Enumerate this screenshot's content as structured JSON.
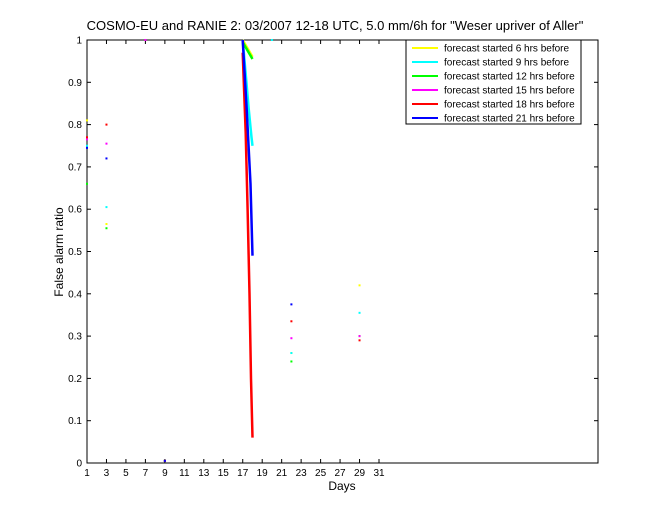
{
  "chart_data": {
    "type": "line",
    "title": "COSMO-EU and RANIE 2: 03/2007 12-18 UTC, 5.0 mm/6h for \"Weser upriver of Aller\"",
    "xlabel": "Days",
    "ylabel": "False alarm ratio",
    "xlim": [
      1,
      53.5
    ],
    "ylim": [
      0,
      1
    ],
    "xticks": [
      1,
      3,
      5,
      7,
      9,
      11,
      13,
      15,
      17,
      19,
      21,
      23,
      25,
      27,
      29,
      31
    ],
    "yticks": [
      0,
      0.1,
      0.2,
      0.3,
      0.4,
      0.5,
      0.6,
      0.7,
      0.8,
      0.9,
      1
    ],
    "grid": false,
    "legend_position": "top-right",
    "series": [
      {
        "name": "forecast started 6 hrs before",
        "color": "#ffff00",
        "points": [
          [
            1,
            0.81
          ],
          [
            3,
            0.565
          ],
          [
            9,
            0.005
          ],
          [
            22,
            0.26
          ],
          [
            29,
            0.42
          ]
        ],
        "lines": [
          [
            [
              17,
              1.0
            ],
            [
              18,
              0.96
            ]
          ]
        ]
      },
      {
        "name": "forecast started 9 hrs before",
        "color": "#00ffff",
        "points": [
          [
            1,
            0.75
          ],
          [
            3,
            0.605
          ],
          [
            9,
            0.005
          ],
          [
            20,
            1.0
          ],
          [
            22,
            0.26
          ],
          [
            29,
            0.355
          ]
        ],
        "lines": [
          [
            [
              17,
              1.0
            ],
            [
              17.3,
              0.92
            ],
            [
              17.6,
              0.84
            ],
            [
              17.9,
              0.77
            ],
            [
              18,
              0.75
            ]
          ]
        ]
      },
      {
        "name": "forecast started 12 hrs before",
        "color": "#00ff00",
        "points": [
          [
            1,
            0.66
          ],
          [
            3,
            0.555
          ],
          [
            9,
            0.005
          ],
          [
            22,
            0.24
          ],
          [
            29,
            0.3
          ]
        ],
        "lines": [
          [
            [
              17,
              0.995
            ],
            [
              17.5,
              0.975
            ],
            [
              18,
              0.955
            ]
          ]
        ]
      },
      {
        "name": "forecast started 15 hrs before",
        "color": "#ff00ff",
        "points": [
          [
            1,
            0.765
          ],
          [
            3,
            0.755
          ],
          [
            7,
            1.0
          ],
          [
            9,
            0.005
          ],
          [
            22,
            0.295
          ],
          [
            29,
            0.3
          ]
        ],
        "lines": []
      },
      {
        "name": "forecast started 18 hrs before",
        "color": "#ff0000",
        "points": [
          [
            1,
            0.77
          ],
          [
            3,
            0.8
          ],
          [
            9,
            0.005
          ],
          [
            22,
            0.335
          ],
          [
            29,
            0.29
          ]
        ],
        "lines": [
          [
            [
              17,
              0.97
            ],
            [
              17.3,
              0.78
            ],
            [
              17.5,
              0.6
            ],
            [
              17.7,
              0.4
            ],
            [
              17.85,
              0.2
            ],
            [
              18,
              0.06
            ]
          ]
        ]
      },
      {
        "name": "forecast started 21 hrs before",
        "color": "#0000ff",
        "points": [
          [
            1,
            0.745
          ],
          [
            3,
            0.72
          ],
          [
            9,
            0.005
          ],
          [
            22,
            0.375
          ]
        ],
        "lines": [
          [
            [
              17,
              1.0
            ],
            [
              17.4,
              0.84
            ],
            [
              17.8,
              0.66
            ],
            [
              18,
              0.49
            ]
          ]
        ]
      }
    ]
  }
}
